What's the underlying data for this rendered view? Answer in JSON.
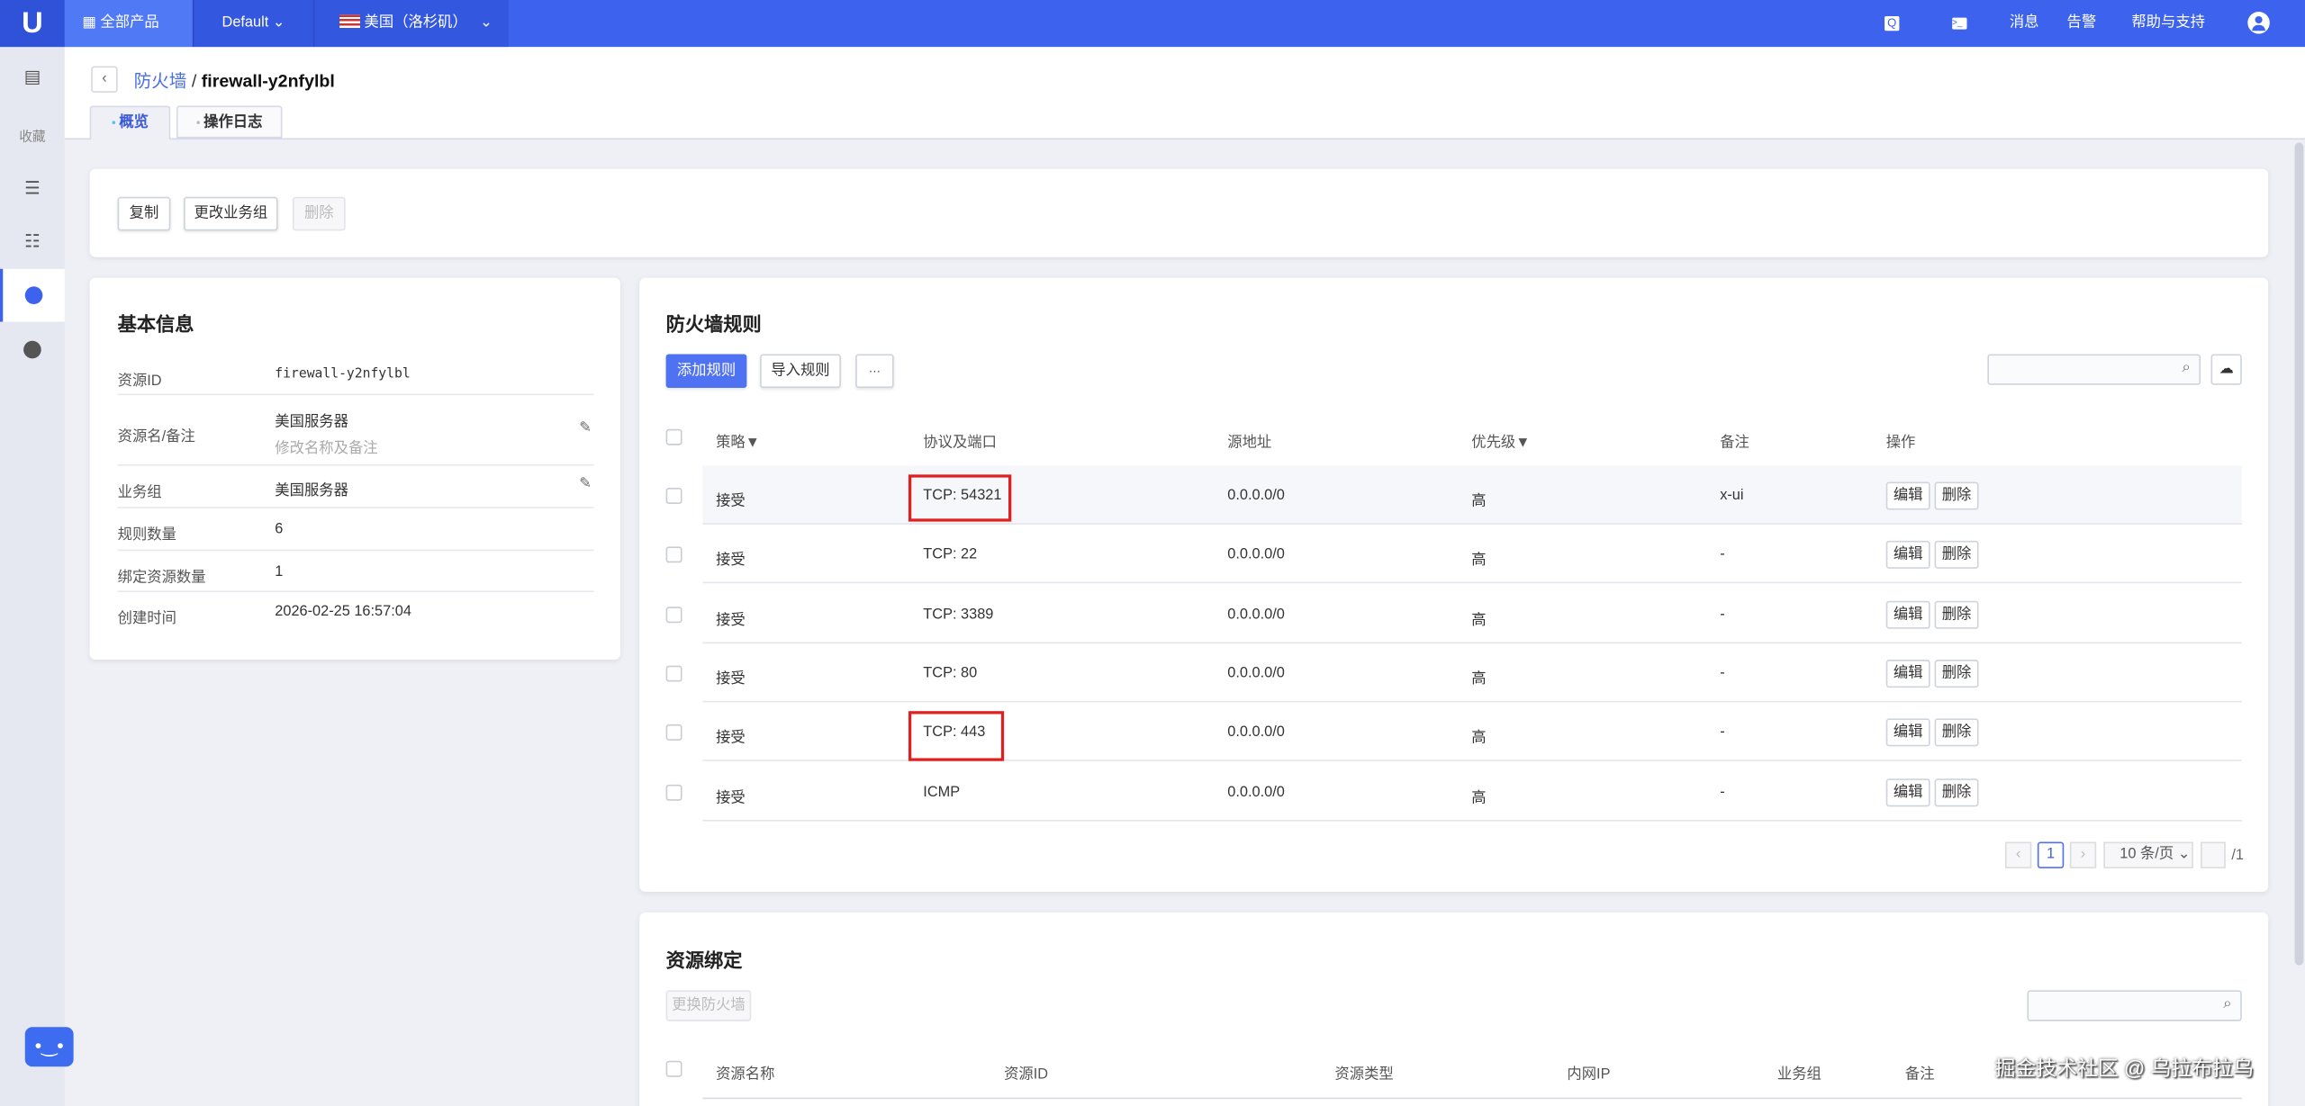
{
  "topbar": {
    "logo": "U",
    "all_products": "全部产品",
    "project": "Default",
    "region": "美国（洛杉矶）",
    "messages": "消息",
    "alerts": "告警",
    "help": "帮助与支持"
  },
  "sidebar": {
    "favorites": "收藏"
  },
  "header": {
    "back": "‹",
    "breadcrumb_parent": "防火墙",
    "separator": "/",
    "breadcrumb_current": "firewall-y2nfylbl",
    "tabs": [
      {
        "label": "概览",
        "active": true
      },
      {
        "label": "操作日志",
        "active": false
      }
    ]
  },
  "actions": {
    "copy": "复制",
    "change_group": "更改业务组",
    "delete": "删除"
  },
  "basic_info": {
    "title": "基本信息",
    "rows": [
      {
        "label": "资源ID",
        "value": "firewall-y2nfylbl"
      },
      {
        "label": "资源名/备注",
        "value": "美国服务器",
        "sub": "修改名称及备注"
      },
      {
        "label": "业务组",
        "value": "美国服务器"
      },
      {
        "label": "规则数量",
        "value": "6"
      },
      {
        "label": "绑定资源数量",
        "value": "1"
      },
      {
        "label": "创建时间",
        "value": "2026-02-25 16:57:04"
      }
    ]
  },
  "rules": {
    "title": "防火墙规则",
    "add": "添加规则",
    "import": "导入规则",
    "more": "···",
    "columns": [
      "策略",
      "协议及端口",
      "源地址",
      "优先级",
      "备注",
      "操作"
    ],
    "rows": [
      {
        "policy": "接受",
        "proto": "TCP: 54321",
        "src": "0.0.0.0/0",
        "priority": "高",
        "note": "x-ui",
        "highlighted": true
      },
      {
        "policy": "接受",
        "proto": "TCP: 22",
        "src": "0.0.0.0/0",
        "priority": "高",
        "note": "-",
        "highlighted": false
      },
      {
        "policy": "接受",
        "proto": "TCP: 3389",
        "src": "0.0.0.0/0",
        "priority": "高",
        "note": "-",
        "highlighted": false
      },
      {
        "policy": "接受",
        "proto": "TCP: 80",
        "src": "0.0.0.0/0",
        "priority": "高",
        "note": "-",
        "highlighted": false
      },
      {
        "policy": "接受",
        "proto": "TCP: 443",
        "src": "0.0.0.0/0",
        "priority": "高",
        "note": "-",
        "highlighted": true
      },
      {
        "policy": "接受",
        "proto": "ICMP",
        "src": "0.0.0.0/0",
        "priority": "高",
        "note": "-",
        "highlighted": false
      }
    ],
    "edit": "编辑",
    "delete": "删除",
    "pagination": {
      "prev": "‹",
      "page": "1",
      "next": "›",
      "page_size": "10 条/页",
      "total": "/1"
    }
  },
  "binding": {
    "title": "资源绑定",
    "change_fw": "更换防火墙",
    "columns": [
      "资源名称",
      "资源ID",
      "资源类型",
      "内网IP",
      "业务组",
      "备注"
    ]
  },
  "watermark": "掘金技术社区 @ 乌拉布拉乌",
  "colors": {
    "brand": "#3d62ee",
    "highlight_box": "#e02020"
  }
}
